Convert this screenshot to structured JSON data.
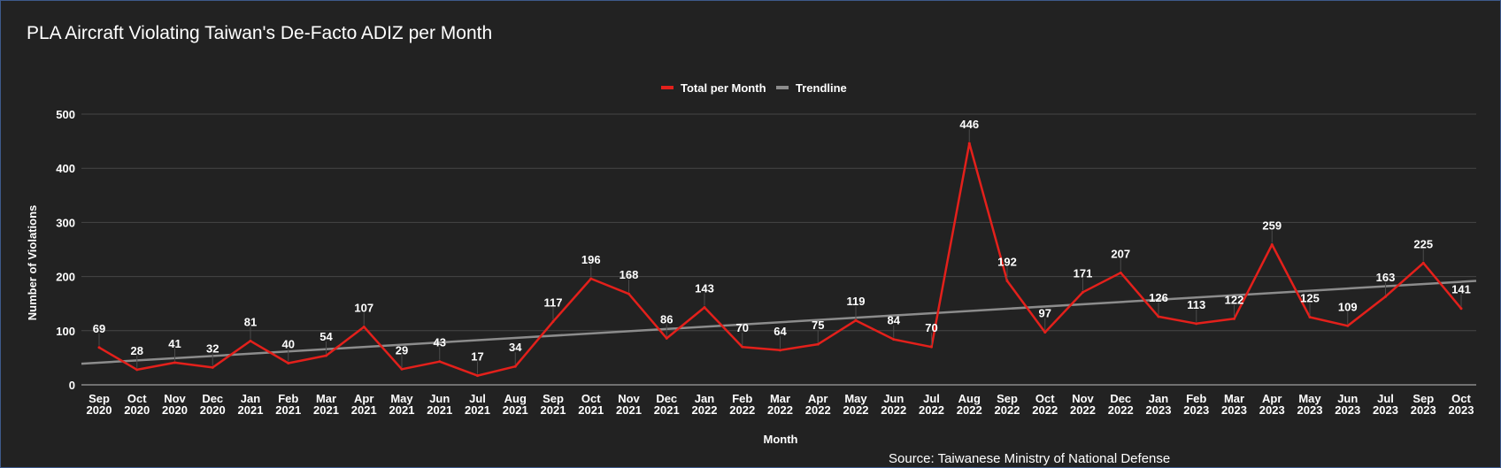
{
  "chart_data": {
    "type": "line",
    "title": "PLA Aircraft Violating Taiwan's De-Facto ADIZ per Month",
    "xlabel": "Month",
    "ylabel": "Number of Violations",
    "source": "Source: Taiwanese Ministry of National Defense",
    "ylim": [
      0,
      500
    ],
    "yticks": [
      "0",
      "100",
      "200",
      "300",
      "400",
      "500"
    ],
    "grid": true,
    "legend_position": "top",
    "categories": [
      [
        "Sep",
        "2020"
      ],
      [
        "Oct",
        "2020"
      ],
      [
        "Nov",
        "2020"
      ],
      [
        "Dec",
        "2020"
      ],
      [
        "Jan",
        "2021"
      ],
      [
        "Feb",
        "2021"
      ],
      [
        "Mar",
        "2021"
      ],
      [
        "Apr",
        "2021"
      ],
      [
        "May",
        "2021"
      ],
      [
        "Jun",
        "2021"
      ],
      [
        "Jul",
        "2021"
      ],
      [
        "Aug",
        "2021"
      ],
      [
        "Sep",
        "2021"
      ],
      [
        "Oct",
        "2021"
      ],
      [
        "Nov",
        "2021"
      ],
      [
        "Dec",
        "2021"
      ],
      [
        "Jan",
        "2022"
      ],
      [
        "Feb",
        "2022"
      ],
      [
        "Mar",
        "2022"
      ],
      [
        "Apr",
        "2022"
      ],
      [
        "May",
        "2022"
      ],
      [
        "Jun",
        "2022"
      ],
      [
        "Jul",
        "2022"
      ],
      [
        "Aug",
        "2022"
      ],
      [
        "Sep",
        "2022"
      ],
      [
        "Oct",
        "2022"
      ],
      [
        "Nov",
        "2022"
      ],
      [
        "Dec",
        "2022"
      ],
      [
        "Jan",
        "2023"
      ],
      [
        "Feb",
        "2023"
      ],
      [
        "Mar",
        "2023"
      ],
      [
        "Apr",
        "2023"
      ],
      [
        "May",
        "2023"
      ],
      [
        "Jun",
        "2023"
      ],
      [
        "Jul",
        "2023"
      ],
      [
        "Sep",
        "2023"
      ],
      [
        "Oct",
        "2023"
      ]
    ],
    "series": [
      {
        "name": "Total per Month",
        "color": "#e3201b",
        "values": [
          69,
          28,
          41,
          32,
          81,
          40,
          54,
          107,
          29,
          43,
          17,
          34,
          117,
          196,
          168,
          86,
          143,
          70,
          64,
          75,
          119,
          84,
          70,
          446,
          192,
          97,
          171,
          207,
          126,
          113,
          122,
          259,
          125,
          109,
          163,
          225,
          141
        ]
      },
      {
        "name": "Trendline",
        "color": "#8c8c8c",
        "type": "linear-trend",
        "start": 39,
        "end": 192
      }
    ]
  }
}
